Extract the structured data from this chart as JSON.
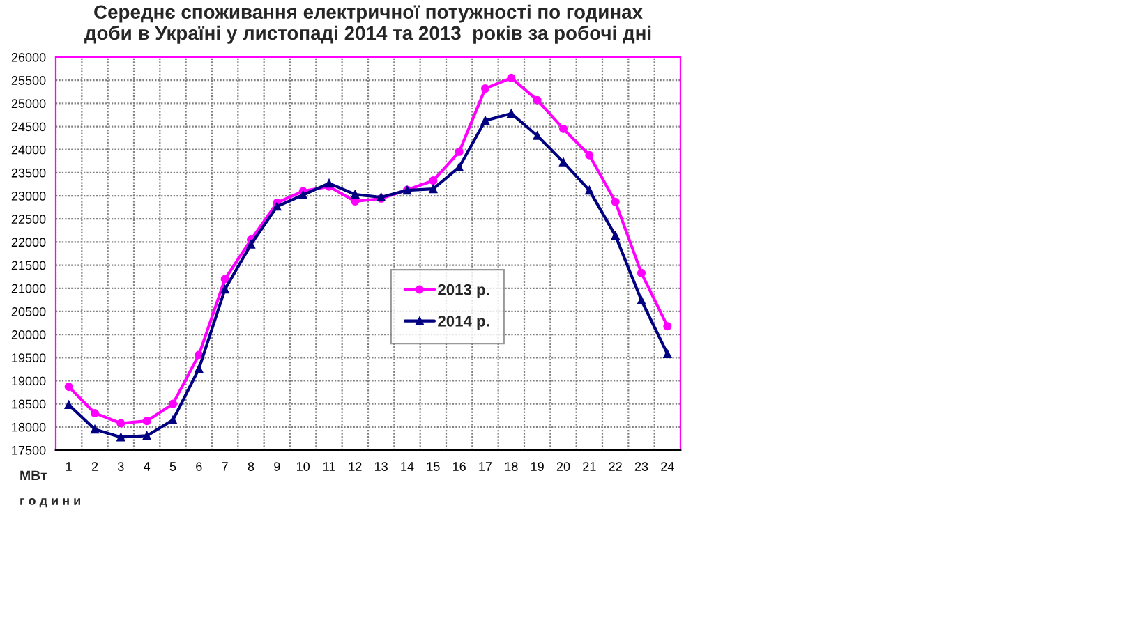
{
  "chart_data": {
    "type": "line",
    "title": "Середнє споживання електричної потужності по годинах\nдоби в Україні у листопаді 2014 та 2013  років за робочі дні",
    "xlabel": "г о д и н и",
    "ylabel": "МВт",
    "categories": [
      "1",
      "2",
      "3",
      "4",
      "5",
      "6",
      "7",
      "8",
      "9",
      "10",
      "11",
      "12",
      "13",
      "14",
      "15",
      "16",
      "17",
      "18",
      "19",
      "20",
      "21",
      "22",
      "23",
      "24"
    ],
    "series": [
      {
        "name": "2013 р.",
        "color": "#ff00ff",
        "marker": "circle",
        "values": [
          18870,
          18300,
          18080,
          18130,
          18500,
          19560,
          21200,
          22050,
          22850,
          23100,
          23200,
          22880,
          22940,
          23130,
          23330,
          23950,
          25320,
          25550,
          25070,
          24450,
          23880,
          22870,
          21330,
          20180
        ]
      },
      {
        "name": "2014 р.",
        "color": "#000080",
        "marker": "triangle",
        "values": [
          18480,
          17950,
          17780,
          17810,
          18150,
          19260,
          20980,
          21950,
          22770,
          23020,
          23270,
          23030,
          22970,
          23120,
          23150,
          23620,
          24630,
          24780,
          24300,
          23730,
          23120,
          22140,
          20740,
          19580
        ]
      }
    ],
    "ylim": [
      17500,
      26000
    ],
    "yticks": [
      17500,
      18000,
      18500,
      19000,
      19500,
      20000,
      20500,
      21000,
      21500,
      22000,
      22500,
      23000,
      23500,
      24000,
      24500,
      25000,
      25500,
      26000
    ],
    "grid": true,
    "legend": "center",
    "line_style": "solid"
  }
}
